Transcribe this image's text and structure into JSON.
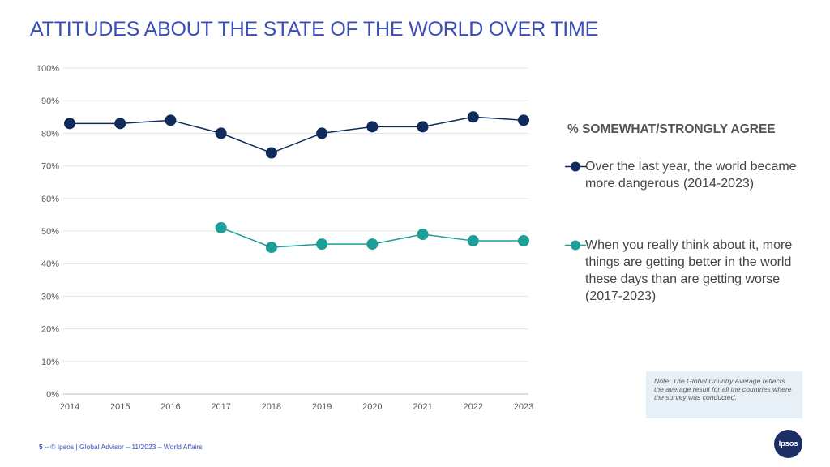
{
  "title": "ATTITUDES ABOUT THE STATE OF THE WORLD OVER TIME",
  "legend_heading": "% SOMEWHAT/STRONGLY AGREE",
  "note": "Note: The Global Country Average reflects the average result for all the countries where the survey was conducted.",
  "footer": {
    "page": "5",
    "dash": " – ",
    "text": "© Ipsos | Global Advisor – 11/2023 – World Affairs"
  },
  "logo_text": "Ipsos",
  "chart_data": {
    "type": "line",
    "title": "ATTITUDES ABOUT THE STATE OF THE WORLD OVER TIME",
    "xlabel": "",
    "ylabel": "",
    "categories": [
      "2014",
      "2015",
      "2016",
      "2017",
      "2018",
      "2019",
      "2020",
      "2021",
      "2022",
      "2023"
    ],
    "ylim": [
      0,
      100
    ],
    "y_ticks": [
      "0%",
      "10%",
      "20%",
      "30%",
      "40%",
      "50%",
      "60%",
      "70%",
      "80%",
      "90%",
      "100%"
    ],
    "grid": true,
    "legend_position": "right",
    "series": [
      {
        "name": "Over the last year, the world became more dangerous (2014-2023)",
        "color": "#0f2a5c",
        "values": [
          83,
          83,
          84,
          80,
          74,
          80,
          82,
          82,
          85,
          84
        ]
      },
      {
        "name": "When you really think about it, more things are getting better in the world these days than are getting worse (2017-2023)",
        "color": "#1a9e96",
        "values": [
          null,
          null,
          null,
          51,
          45,
          46,
          46,
          49,
          47,
          47
        ]
      }
    ]
  }
}
